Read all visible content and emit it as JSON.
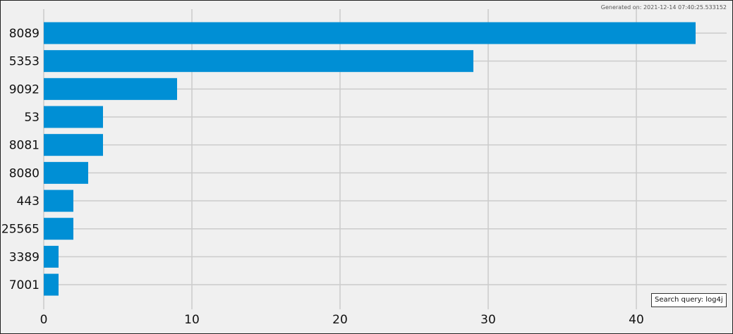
{
  "generated_text": "Generated on: 2021-12-14 07:40:25.533152",
  "search_query_text": "Search query: log4j",
  "colors": {
    "bar": "#008fd5",
    "grid": "#cbcbcb",
    "background": "#f0f0f0"
  },
  "chart_data": {
    "type": "bar",
    "orientation": "horizontal",
    "categories": [
      "8089",
      "5353",
      "9092",
      "53",
      "8081",
      "8080",
      "443",
      "25565",
      "3389",
      "7001"
    ],
    "values": [
      44,
      29,
      9,
      4,
      4,
      3,
      2,
      2,
      1,
      1
    ],
    "xticks": [
      0,
      10,
      20,
      30,
      40
    ],
    "xlim": [
      0,
      46
    ],
    "title": "",
    "xlabel": "",
    "ylabel": "",
    "grid": true
  }
}
